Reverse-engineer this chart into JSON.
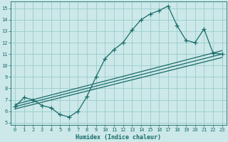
{
  "xlabel": "Humidex (Indice chaleur)",
  "bg_color": "#cce8e8",
  "grid_color": "#99cccc",
  "line_color": "#1a6b6b",
  "xlim": [
    -0.5,
    23.5
  ],
  "ylim": [
    4.8,
    15.6
  ],
  "xticks": [
    0,
    1,
    2,
    3,
    4,
    5,
    6,
    7,
    8,
    9,
    10,
    11,
    12,
    13,
    14,
    15,
    16,
    17,
    18,
    19,
    20,
    21,
    22,
    23
  ],
  "yticks": [
    5,
    6,
    7,
    8,
    9,
    10,
    11,
    12,
    13,
    14,
    15
  ],
  "main_line_x": [
    0,
    1,
    2,
    3,
    4,
    5,
    6,
    7,
    8,
    9,
    10,
    11,
    12,
    13,
    14,
    15,
    16,
    17,
    18,
    19,
    20,
    21,
    22,
    23
  ],
  "main_line_y": [
    6.4,
    7.2,
    7.0,
    6.5,
    6.3,
    5.7,
    5.5,
    6.0,
    7.3,
    9.0,
    10.6,
    11.4,
    12.0,
    13.1,
    14.0,
    14.5,
    14.8,
    15.2,
    13.5,
    12.2,
    12.0,
    13.2,
    11.1,
    11.0
  ],
  "line1_x": [
    0,
    23
  ],
  "line1_y": [
    6.6,
    11.3
  ],
  "line2_x": [
    0,
    23
  ],
  "line2_y": [
    6.4,
    11.0
  ],
  "line3_x": [
    0,
    23
  ],
  "line3_y": [
    6.2,
    10.7
  ],
  "marker": "+",
  "marker_size": 4,
  "linewidth": 0.9,
  "tick_fontsize": 5.0,
  "xlabel_fontsize": 6.0
}
